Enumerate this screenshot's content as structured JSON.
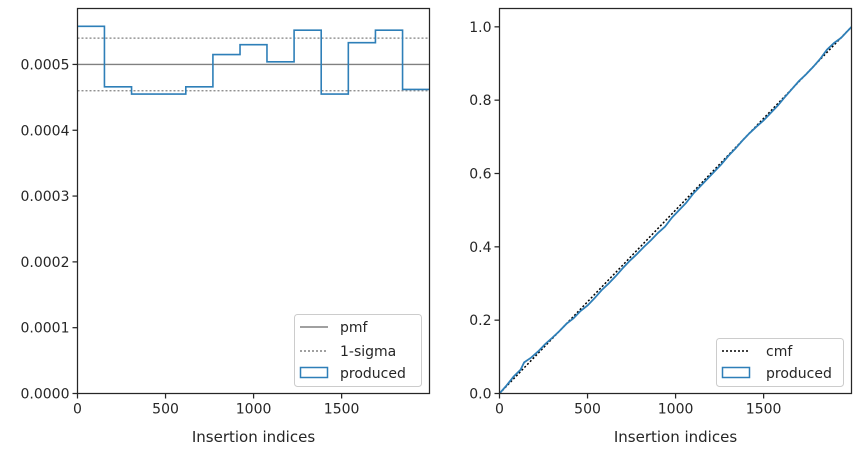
{
  "chart_data": [
    {
      "type": "line",
      "xlabel": "Insertion indices",
      "ylabel": "",
      "xlim": [
        0,
        1999
      ],
      "ylim": [
        0,
        0.000585
      ],
      "xticks": [
        0,
        500,
        1000,
        1500
      ],
      "xtick_labels": [
        "0",
        "500",
        "1000",
        "1500"
      ],
      "yticks": [
        0,
        0.0001,
        0.0002,
        0.0003,
        0.0004,
        0.0005
      ],
      "ytick_labels": [
        "0.0000",
        "0.0001",
        "0.0002",
        "0.0003",
        "0.0004",
        "0.0005"
      ],
      "grid": false,
      "legend_position": "lower-right",
      "pmf": {
        "name": "pmf",
        "value": 0.0005,
        "color": "#808080"
      },
      "sigma": {
        "name": "1-sigma",
        "values": [
          0.00046,
          0.00054
        ],
        "color": "#808080"
      },
      "produced": {
        "name": "produced",
        "color": "#2e7fb8",
        "bin_edges": [
          0,
          153,
          307,
          461,
          615,
          769,
          923,
          1076,
          1230,
          1384,
          1538,
          1692,
          1846,
          1999
        ],
        "values": [
          0.000558,
          0.000466,
          0.000455,
          0.000455,
          0.000466,
          0.000515,
          0.00053,
          0.000504,
          0.000552,
          0.000455,
          0.000533,
          0.000552,
          0.000462
        ]
      }
    },
    {
      "type": "line",
      "xlabel": "Insertion indices",
      "ylabel": "",
      "xlim": [
        0,
        1999
      ],
      "ylim": [
        0,
        1.05
      ],
      "xticks": [
        0,
        500,
        1000,
        1500
      ],
      "xtick_labels": [
        "0",
        "500",
        "1000",
        "1500"
      ],
      "yticks": [
        0,
        0.2,
        0.4,
        0.6,
        0.8,
        1.0
      ],
      "ytick_labels": [
        "0.0",
        "0.2",
        "0.4",
        "0.6",
        "0.8",
        "1.0"
      ],
      "grid": false,
      "legend_position": "lower-right",
      "cmf": {
        "name": "cmf",
        "x": [
          0,
          1999
        ],
        "y": [
          0,
          1.0
        ],
        "color": "#000000"
      },
      "produced": {
        "name": "produced",
        "color": "#2e7fb8",
        "x": [
          0,
          40,
          80,
          120,
          140,
          180,
          220,
          260,
          300,
          340,
          380,
          420,
          460,
          500,
          540,
          580,
          620,
          660,
          700,
          740,
          780,
          820,
          860,
          900,
          940,
          980,
          1020,
          1060,
          1100,
          1140,
          1180,
          1220,
          1260,
          1300,
          1340,
          1380,
          1420,
          1460,
          1500,
          1540,
          1580,
          1620,
          1660,
          1700,
          1740,
          1780,
          1820,
          1860,
          1900,
          1940,
          1999
        ],
        "y": [
          0,
          0.022,
          0.046,
          0.065,
          0.085,
          0.098,
          0.115,
          0.135,
          0.152,
          0.17,
          0.19,
          0.205,
          0.225,
          0.24,
          0.26,
          0.282,
          0.3,
          0.32,
          0.342,
          0.362,
          0.38,
          0.4,
          0.418,
          0.438,
          0.455,
          0.48,
          0.5,
          0.52,
          0.545,
          0.565,
          0.585,
          0.605,
          0.625,
          0.648,
          0.668,
          0.69,
          0.71,
          0.728,
          0.745,
          0.765,
          0.785,
          0.808,
          0.83,
          0.852,
          0.87,
          0.89,
          0.912,
          0.938,
          0.956,
          0.97,
          1.0
        ]
      }
    }
  ]
}
